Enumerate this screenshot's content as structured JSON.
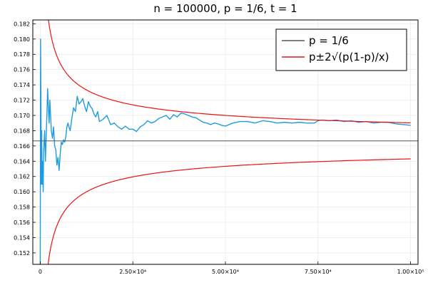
{
  "chart_data": {
    "type": "line",
    "title": "n = 100000,  p = 1/6,  t = 1",
    "xlabel": "",
    "ylabel": "",
    "xlim": [
      -2000,
      102000
    ],
    "ylim": [
      0.1505,
      0.1825
    ],
    "grid": true,
    "legend_position": "top-right",
    "x_ticks": [
      {
        "value": 0,
        "label": "0"
      },
      {
        "value": 25000,
        "label": "2.50×10⁴"
      },
      {
        "value": 50000,
        "label": "5.00×10⁴"
      },
      {
        "value": 75000,
        "label": "7.50×10⁴"
      },
      {
        "value": 100000,
        "label": "1.00×10⁵"
      }
    ],
    "y_ticks": [
      {
        "value": 0.152,
        "label": "0.152"
      },
      {
        "value": 0.154,
        "label": "0.154"
      },
      {
        "value": 0.156,
        "label": "0.156"
      },
      {
        "value": 0.158,
        "label": "0.158"
      },
      {
        "value": 0.16,
        "label": "0.160"
      },
      {
        "value": 0.162,
        "label": "0.162"
      },
      {
        "value": 0.164,
        "label": "0.164"
      },
      {
        "value": 0.166,
        "label": "0.166"
      },
      {
        "value": 0.168,
        "label": "0.168"
      },
      {
        "value": 0.17,
        "label": "0.170"
      },
      {
        "value": 0.172,
        "label": "0.172"
      },
      {
        "value": 0.174,
        "label": "0.174"
      },
      {
        "value": 0.176,
        "label": "0.176"
      },
      {
        "value": 0.178,
        "label": "0.178"
      },
      {
        "value": 0.18,
        "label": "0.180"
      },
      {
        "value": 0.182,
        "label": "0.182"
      }
    ],
    "series": [
      {
        "name": "",
        "color": "#1f9be0",
        "style": "simulation",
        "x": [
          0,
          100,
          200,
          300,
          400,
          500,
          600,
          700,
          800,
          900,
          1000,
          1200,
          1400,
          1600,
          1800,
          2000,
          2200,
          2400,
          2600,
          2800,
          3000,
          3300,
          3600,
          3900,
          4200,
          4500,
          4800,
          5100,
          5400,
          5700,
          6000,
          6300,
          6600,
          6900,
          7200,
          7500,
          7800,
          8100,
          8500,
          9000,
          9500,
          10000,
          10500,
          11000,
          11500,
          12000,
          12500,
          13000,
          13500,
          14000,
          14500,
          15000,
          15500,
          16000,
          17000,
          18000,
          19000,
          20000,
          21000,
          22000,
          23000,
          24000,
          25000,
          26000,
          27000,
          28000,
          29000,
          30000,
          31000,
          32000,
          33000,
          34000,
          35000,
          36000,
          37000,
          38000,
          39000,
          40000,
          41000,
          42000,
          43000,
          44000,
          45000,
          46000,
          47000,
          48000,
          49000,
          50000,
          52000,
          54000,
          56000,
          58000,
          60000,
          62000,
          64000,
          66000,
          68000,
          70000,
          72000,
          74000,
          75000,
          76000,
          78000,
          80000,
          82000,
          84000,
          86000,
          88000,
          90000,
          92000,
          94000,
          96000,
          98000,
          100000
        ],
        "y": [
          0.15,
          0.18,
          0.171,
          0.161,
          0.168,
          0.161,
          0.164,
          0.162,
          0.16,
          0.165,
          0.166,
          0.168,
          0.164,
          0.167,
          0.17,
          0.1735,
          0.171,
          0.169,
          0.172,
          0.17,
          0.168,
          0.167,
          0.1685,
          0.166,
          0.1655,
          0.1635,
          0.1645,
          0.1628,
          0.165,
          0.1665,
          0.1662,
          0.1668,
          0.1665,
          0.1672,
          0.1685,
          0.169,
          0.1684,
          0.168,
          0.1695,
          0.171,
          0.1705,
          0.1725,
          0.1715,
          0.1718,
          0.1722,
          0.1712,
          0.1705,
          0.1718,
          0.1712,
          0.1709,
          0.1702,
          0.1698,
          0.1705,
          0.1692,
          0.1695,
          0.17,
          0.1688,
          0.169,
          0.1685,
          0.1682,
          0.1686,
          0.1682,
          0.1682,
          0.1679,
          0.1685,
          0.1688,
          0.1693,
          0.169,
          0.1692,
          0.1696,
          0.1698,
          0.17,
          0.1695,
          0.1701,
          0.1698,
          0.1703,
          0.1702,
          0.17,
          0.1698,
          0.1697,
          0.1694,
          0.1691,
          0.169,
          0.1688,
          0.169,
          0.1689,
          0.1687,
          0.1686,
          0.169,
          0.1692,
          0.1692,
          0.169,
          0.1693,
          0.1692,
          0.169,
          0.1691,
          0.169,
          0.1691,
          0.169,
          0.169,
          0.1693,
          0.1694,
          0.1693,
          0.1694,
          0.1692,
          0.1693,
          0.1691,
          0.1692,
          0.169,
          0.1691,
          0.1691,
          0.1689,
          0.1688,
          0.1687
        ]
      },
      {
        "name": "p = 1/6",
        "color": "#555555",
        "style": "constant",
        "x": [
          -2000,
          102000
        ],
        "y": [
          0.1666667,
          0.1666667
        ]
      },
      {
        "name": "p±2√(p(1-p)/x)",
        "color": "#ee1111",
        "style": "band",
        "p": 0.1666667,
        "x_from": 1300,
        "x_to": 100000
      }
    ]
  }
}
